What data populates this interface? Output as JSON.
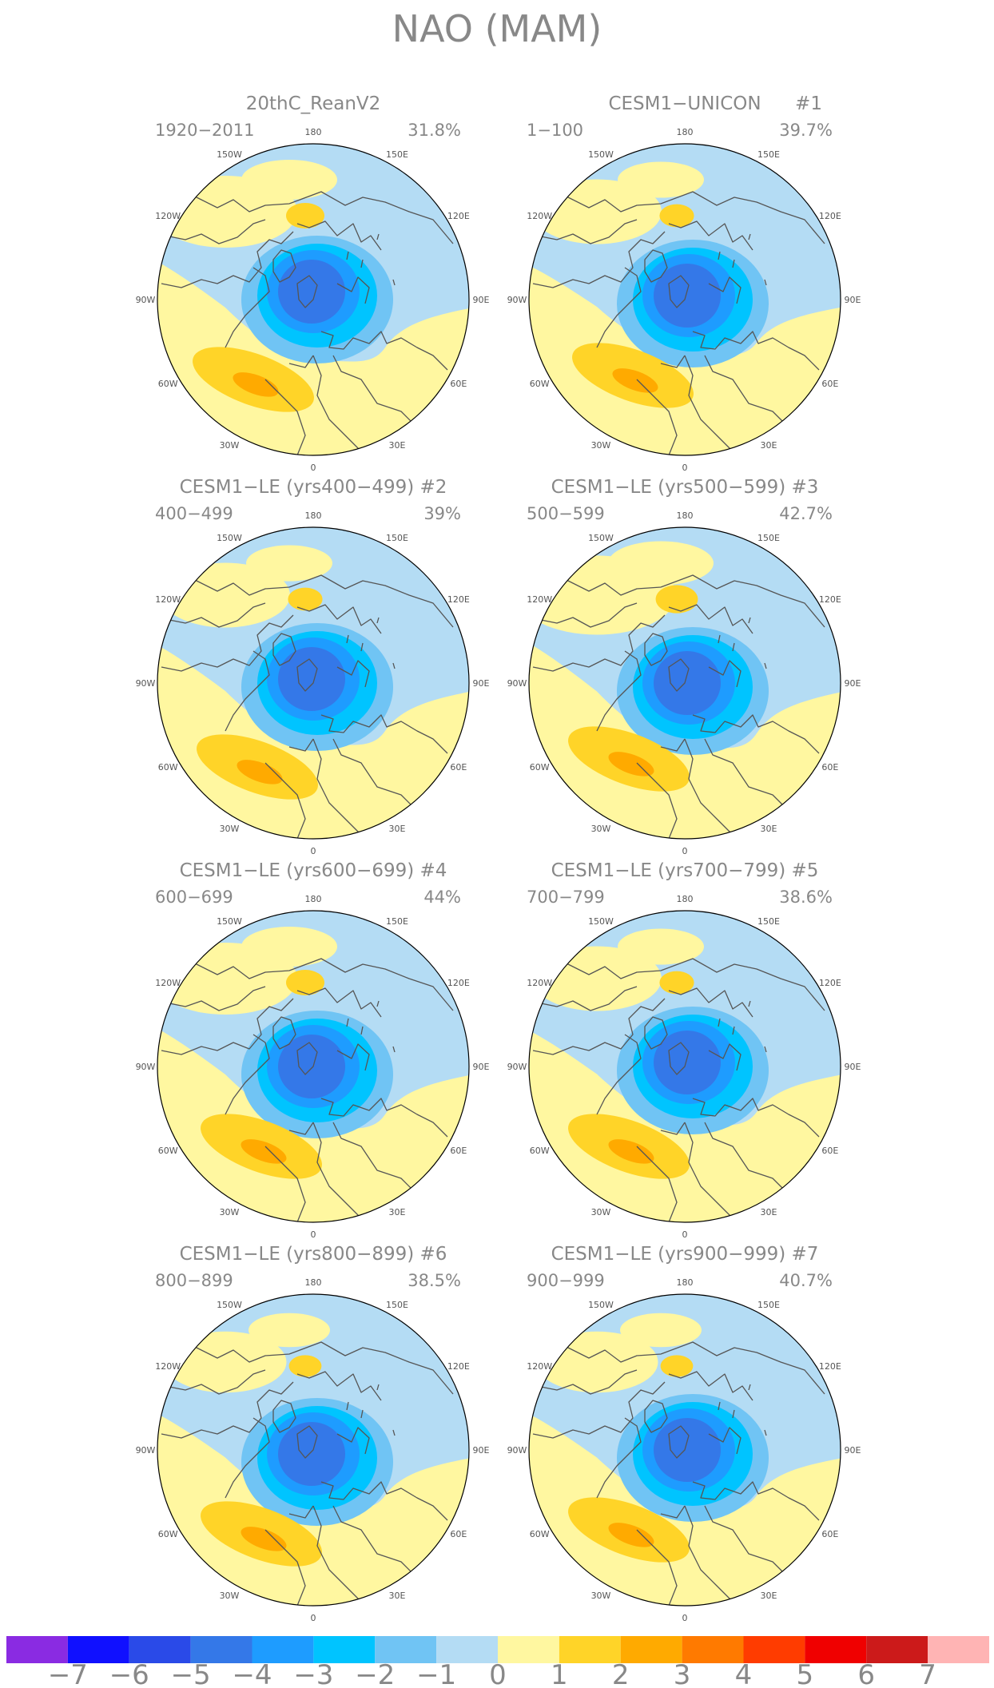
{
  "title": "NAO (MAM)",
  "lon_labels": [
    "180",
    "150E",
    "120E",
    "90E",
    "60E",
    "30E",
    "0",
    "30W",
    "60W",
    "90W",
    "120W",
    "150W"
  ],
  "colors": {
    "land_outline": "#555555",
    "map_border": "#000000",
    "title_text": "#888888",
    "label_text": "#555555"
  },
  "colorbar": {
    "labels": [
      "−7",
      "−6",
      "−5",
      "−4",
      "−3",
      "−2",
      "−1",
      "0",
      "1",
      "2",
      "3",
      "4",
      "5",
      "6",
      "7"
    ],
    "colors": [
      "#8a2be2",
      "#1010ff",
      "#2a4ae8",
      "#3478e8",
      "#1e9cff",
      "#00c4ff",
      "#70c4f4",
      "#b4dcf4",
      "#fff7a0",
      "#ffd428",
      "#ffaa00",
      "#ff7a00",
      "#ff3c00",
      "#f00000",
      "#cc1a1a",
      "#ffb4b4"
    ]
  },
  "panels": [
    {
      "title": "20thC_ReanV2",
      "member": "",
      "period": "1920−2011",
      "variance": "31.8%"
    },
    {
      "title": "CESM1−UNICON",
      "member": "#1",
      "period": "1−100",
      "variance": "39.7%"
    },
    {
      "title": "CESM1−LE (yrs400−499) #2",
      "member": "",
      "period": "400−499",
      "variance": "39%"
    },
    {
      "title": "CESM1−LE (yrs500−599) #3",
      "member": "",
      "period": "500−599",
      "variance": "42.7%"
    },
    {
      "title": "CESM1−LE (yrs600−699) #4",
      "member": "",
      "period": "600−699",
      "variance": "44%"
    },
    {
      "title": "CESM1−LE (yrs700−799) #5",
      "member": "",
      "period": "700−799",
      "variance": "38.6%"
    },
    {
      "title": "CESM1−LE (yrs800−899) #6",
      "member": "",
      "period": "800−899",
      "variance": "38.5%"
    },
    {
      "title": "CESM1−LE (yrs900−999) #7",
      "member": "",
      "period": "900−999",
      "variance": "40.7%"
    }
  ]
}
